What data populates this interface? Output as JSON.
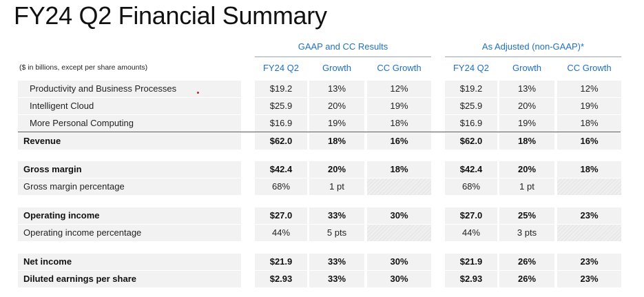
{
  "title": "FY24 Q2 Financial Summary",
  "groups": {
    "gaap": "GAAP and CC Results",
    "adjusted": "As Adjusted (non-GAAP)*"
  },
  "note": "($ in billions, except per share amounts)",
  "columns": {
    "gaap_q2": "FY24 Q2",
    "gaap_growth": "Growth",
    "gaap_cc": "CC Growth",
    "adj_q2": "FY24 Q2",
    "adj_growth": "Growth",
    "adj_cc": "CC Growth"
  },
  "rows": {
    "pbp": {
      "label": "Productivity and Business Processes",
      "g_q2": "$19.2",
      "g_growth": "13%",
      "g_cc": "12%",
      "a_q2": "$19.2",
      "a_growth": "13%",
      "a_cc": "12%"
    },
    "cloud": {
      "label": "Intelligent Cloud",
      "g_q2": "$25.9",
      "g_growth": "20%",
      "g_cc": "19%",
      "a_q2": "$25.9",
      "a_growth": "20%",
      "a_cc": "19%"
    },
    "mpc": {
      "label": "More Personal Computing",
      "g_q2": "$16.9",
      "g_growth": "19%",
      "g_cc": "18%",
      "a_q2": "$16.9",
      "a_growth": "19%",
      "a_cc": "18%"
    },
    "revenue": {
      "label": "Revenue",
      "g_q2": "$62.0",
      "g_growth": "18%",
      "g_cc": "16%",
      "a_q2": "$62.0",
      "a_growth": "18%",
      "a_cc": "16%"
    },
    "gm": {
      "label": "Gross margin",
      "g_q2": "$42.4",
      "g_growth": "20%",
      "g_cc": "18%",
      "a_q2": "$42.4",
      "a_growth": "20%",
      "a_cc": "18%"
    },
    "gmp": {
      "label": "Gross margin percentage",
      "g_q2": "68%",
      "g_growth": "1 pt",
      "a_q2": "68%",
      "a_growth": "1 pt"
    },
    "oi": {
      "label": "Operating income",
      "g_q2": "$27.0",
      "g_growth": "33%",
      "g_cc": "30%",
      "a_q2": "$27.0",
      "a_growth": "25%",
      "a_cc": "23%"
    },
    "oip": {
      "label": "Operating income percentage",
      "g_q2": "44%",
      "g_growth": "5 pts",
      "a_q2": "44%",
      "a_growth": "3 pts"
    },
    "ni": {
      "label": "Net income",
      "g_q2": "$21.9",
      "g_growth": "33%",
      "g_cc": "30%",
      "a_q2": "$21.9",
      "a_growth": "26%",
      "a_cc": "23%"
    },
    "eps": {
      "label": "Diluted earnings per share",
      "g_q2": "$2.93",
      "g_growth": "33%",
      "g_cc": "30%",
      "a_q2": "$2.93",
      "a_growth": "26%",
      "a_cc": "23%"
    }
  }
}
